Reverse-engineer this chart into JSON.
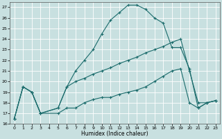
{
  "background_color": "#c8e0e0",
  "grid_color": "#ffffff",
  "line_color": "#1a6b6b",
  "xlabel": "Humidex (Indice chaleur)",
  "ylim": [
    16,
    27.5
  ],
  "xlim": [
    -0.5,
    23.5
  ],
  "yticks": [
    16,
    17,
    18,
    19,
    20,
    21,
    22,
    23,
    24,
    25,
    26,
    27
  ],
  "xticks": [
    0,
    1,
    2,
    3,
    4,
    5,
    6,
    7,
    8,
    9,
    10,
    11,
    12,
    13,
    14,
    15,
    16,
    17,
    18,
    19,
    20,
    21,
    22,
    23
  ],
  "line1_x": [
    0,
    1,
    2,
    3,
    5,
    6,
    7,
    8,
    9,
    10,
    11,
    12,
    13,
    14,
    15,
    16,
    17,
    18,
    19,
    20,
    21,
    22,
    23
  ],
  "line1_y": [
    16.5,
    19.5,
    19.0,
    17.0,
    17.5,
    19.5,
    21.0,
    22.0,
    23.0,
    24.5,
    25.8,
    26.5,
    27.2,
    27.2,
    26.8,
    26.0,
    25.5,
    23.2,
    23.2,
    21.2,
    17.5,
    18.0,
    18.2
  ],
  "line2_x": [
    0,
    1,
    2,
    3,
    5,
    6,
    7,
    8,
    9,
    10,
    11,
    12,
    13,
    14,
    15,
    16,
    17,
    18,
    19,
    20,
    21,
    22,
    23
  ],
  "line2_y": [
    16.5,
    19.5,
    19.0,
    17.0,
    17.5,
    19.5,
    20.0,
    20.3,
    20.7,
    21.0,
    21.3,
    21.7,
    22.0,
    22.3,
    22.7,
    23.0,
    23.3,
    23.7,
    24.0,
    21.0,
    18.0,
    18.0,
    18.2
  ],
  "line3_x": [
    0,
    1,
    2,
    3,
    5,
    6,
    7,
    8,
    9,
    10,
    11,
    12,
    13,
    14,
    15,
    16,
    17,
    18,
    19,
    20,
    21,
    22,
    23
  ],
  "line3_y": [
    16.5,
    19.5,
    19.0,
    17.0,
    17.0,
    17.5,
    17.5,
    18.0,
    18.3,
    18.5,
    18.5,
    18.8,
    19.0,
    19.2,
    19.5,
    20.0,
    20.5,
    21.0,
    21.2,
    18.0,
    17.5,
    18.0,
    18.2
  ]
}
